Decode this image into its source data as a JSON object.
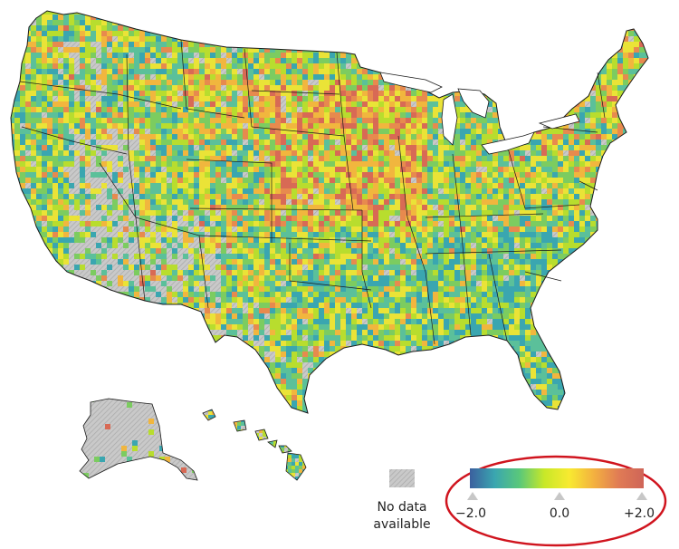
{
  "legend": {
    "no_data_line1": "No data",
    "no_data_line2": "available",
    "scale_labels": [
      "−2.0",
      "0.0",
      "+2.0"
    ],
    "gradient_colors": [
      "#3b5f9e",
      "#3aa6b0",
      "#5ac87a",
      "#c8e828",
      "#f8ea30",
      "#f3b040",
      "#e07b55",
      "#cf6558"
    ],
    "no_data_color": "#c4c4c4",
    "highlight_color": "#d0141e"
  },
  "palette": {
    "cell_colors": [
      "#3aa6b0",
      "#5bc09a",
      "#7ccc60",
      "#b8dd2e",
      "#eae337",
      "#f1b63e",
      "#e78a4e",
      "#d86a55"
    ],
    "no_data_cell": "#c9c9c9",
    "state_border": "#1a1a1a"
  }
}
